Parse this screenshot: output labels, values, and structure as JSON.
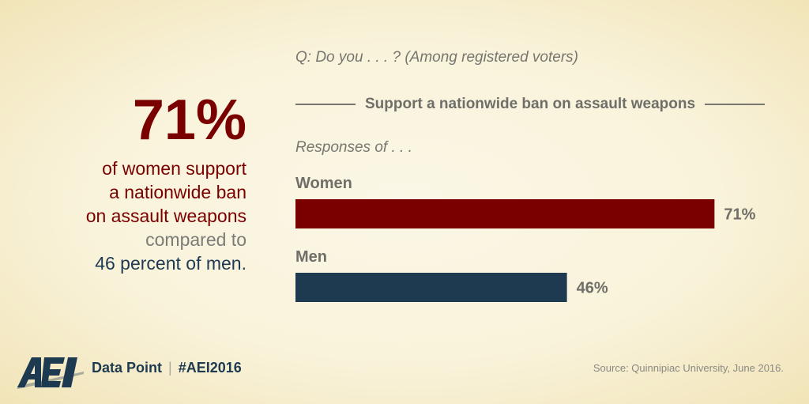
{
  "headline": {
    "big_number": "71%",
    "lines": [
      "of women support",
      "a nationwide ban",
      "on assault weapons",
      "compared to",
      "46 percent of men."
    ]
  },
  "question": "Q: Do you . . . ? (Among registered voters)",
  "chart_heading": "Support a nationwide ban on assault weapons",
  "responses_label": "Responses of . . .",
  "colors": {
    "women": "#7a0000",
    "men": "#1e3a51",
    "text_gray": "#6f6e68"
  },
  "chart_data": {
    "type": "bar",
    "orientation": "horizontal",
    "categories": [
      "Women",
      "Men"
    ],
    "values": [
      71,
      46
    ],
    "value_labels": [
      "71%",
      "46%"
    ],
    "title": "Support a nationwide ban on assault weapons",
    "xlim": [
      0,
      100
    ],
    "grid": false
  },
  "footer": {
    "logo": "AEI",
    "data_point": "Data Point",
    "separator": "|",
    "hashtag": "#AEI2016",
    "source": "Source: Quinnipiac University, June 2016."
  }
}
